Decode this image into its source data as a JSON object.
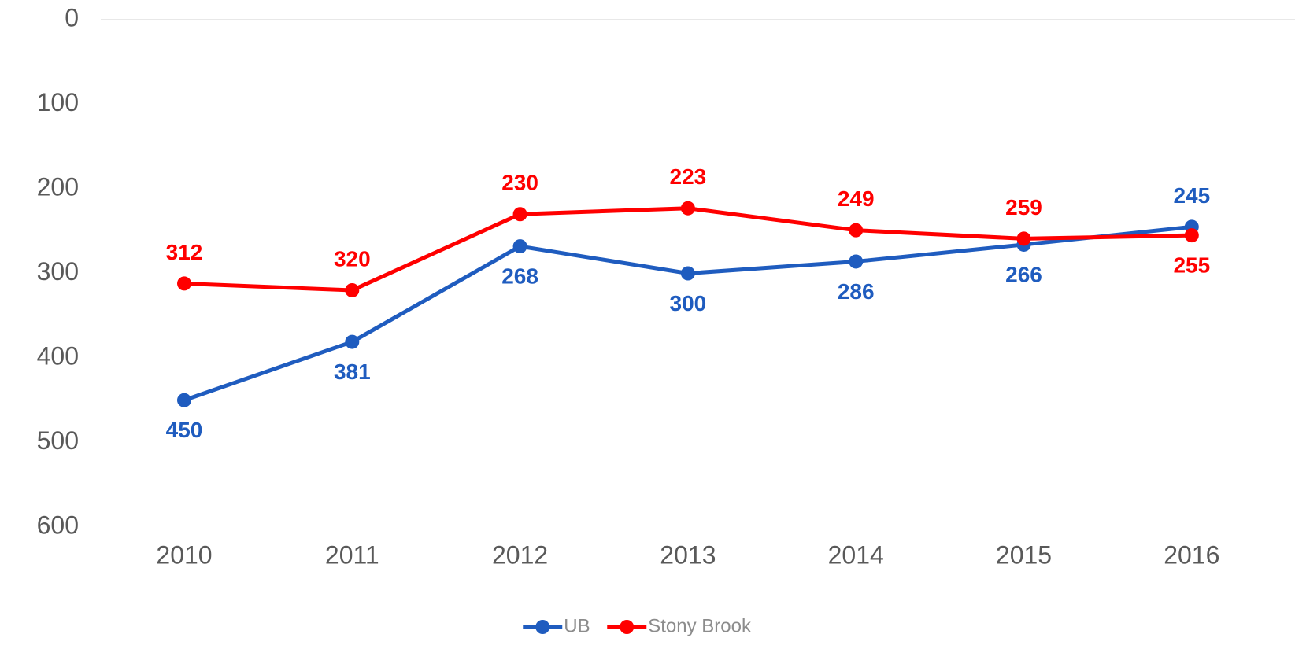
{
  "chart_data": {
    "type": "line",
    "categories": [
      "2010",
      "2011",
      "2012",
      "2013",
      "2014",
      "2015",
      "2016"
    ],
    "series": [
      {
        "name": "UB",
        "color": "#1f5cbf",
        "values": [
          450,
          381,
          268,
          300,
          286,
          266,
          245
        ]
      },
      {
        "name": "Stony Brook",
        "color": "#ff0000",
        "values": [
          312,
          320,
          230,
          223,
          249,
          259,
          255
        ]
      }
    ],
    "ylim": [
      600,
      0
    ],
    "yticks": [
      0,
      100,
      200,
      300,
      400,
      500,
      600
    ],
    "legend": "bottom"
  }
}
